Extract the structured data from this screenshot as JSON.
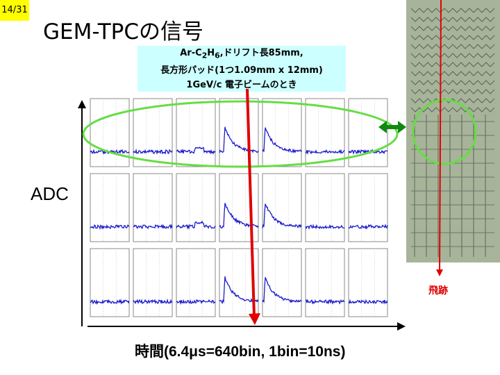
{
  "page_number": "14/31",
  "title": "GEM-TPCの信号",
  "info": {
    "line1_prefix": "Ar-C",
    "line1_sub1": "2",
    "line1_mid": "H",
    "line1_sub2": "6",
    "line1_suffix": ",ドリフト長85mm,",
    "line2": "長方形パッド(1つ1.09mm x 12mm)",
    "line3": "1GeV/c 電子ビームのとき"
  },
  "y_axis_label": "ADC",
  "x_axis_label": "時間(6.4μs=640bin, 1bin=10ns)",
  "track_label": "飛跡",
  "colors": {
    "badge": "#ffff00",
    "info_box": "#ccffff",
    "highlight_ellipse": "#66dd44",
    "track_arrow": "#e00000",
    "width_arrow": "#118811",
    "signal": "#1a1acc"
  },
  "pad_grid": {
    "rows": 3,
    "columns": 7
  }
}
